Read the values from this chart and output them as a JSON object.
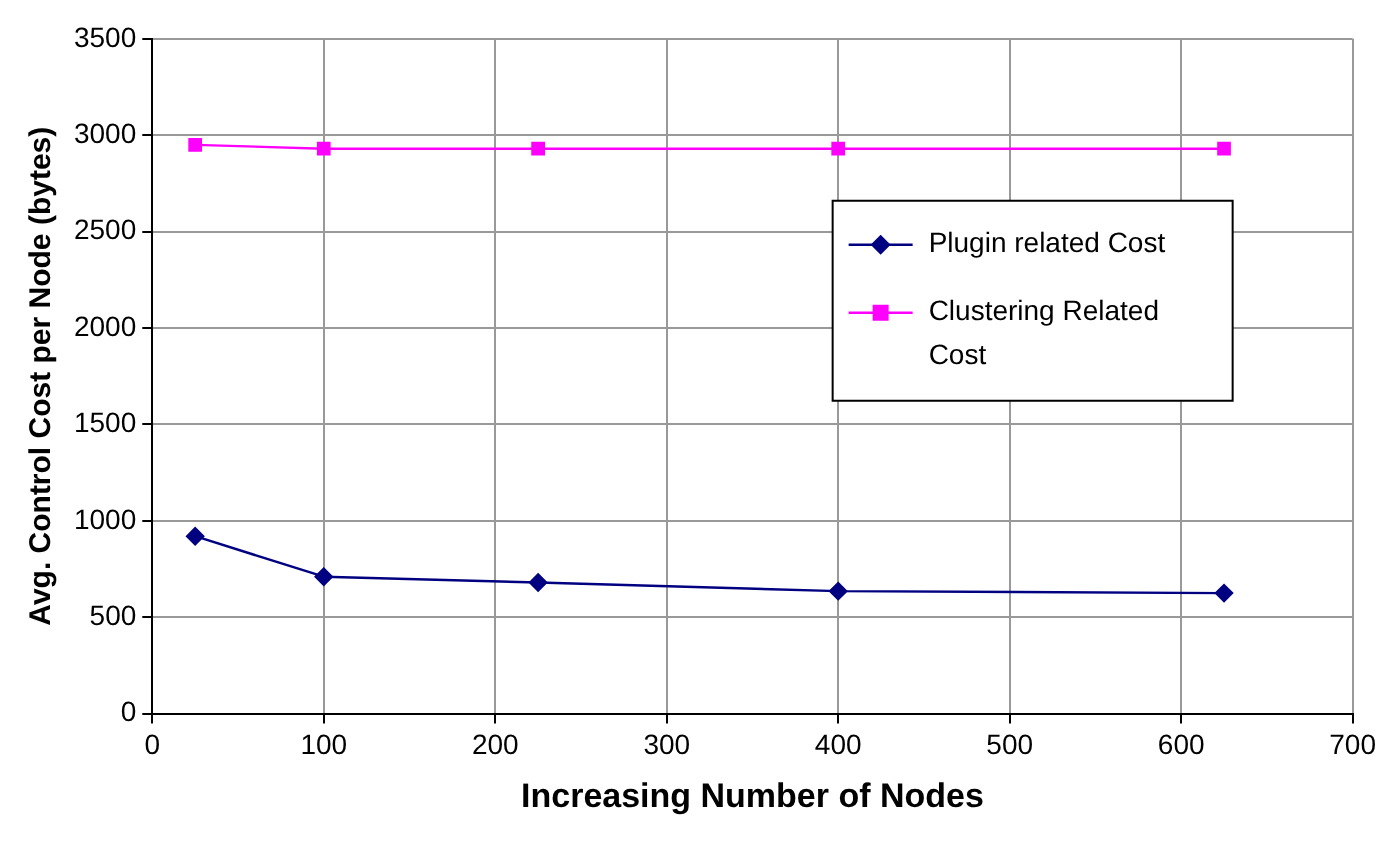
{
  "chart_data": {
    "type": "line",
    "xlabel": "Increasing Number of Nodes",
    "ylabel": "Avg. Control Cost per Node (bytes)",
    "x": [
      25,
      100,
      225,
      400,
      625
    ],
    "series": [
      {
        "name": "Plugin related Cost",
        "color": "#000080",
        "marker": "diamond",
        "values": [
          920,
          710,
          680,
          635,
          625
        ]
      },
      {
        "name": "Clustering Related Cost",
        "color": "#ff00ff",
        "marker": "square",
        "values": [
          2950,
          2930,
          2930,
          2930,
          2930
        ]
      }
    ],
    "xlim": [
      0,
      700
    ],
    "xticks": [
      0,
      100,
      200,
      300,
      400,
      500,
      600,
      700
    ],
    "ylim": [
      0,
      3500
    ],
    "yticks": [
      0,
      500,
      1000,
      1500,
      2000,
      2500,
      3000,
      3500
    ],
    "grid": true,
    "legend": "right",
    "line_style": "solid"
  }
}
